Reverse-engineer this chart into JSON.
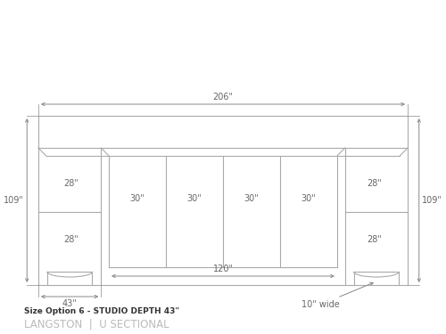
{
  "bg_color": "#ffffff",
  "line_color": "#aaaaaa",
  "dark_line_color": "#888888",
  "text_color": "#666666",
  "title_text": "Size Option 6 - STUDIO DEPTH 43\"",
  "subtitle_text": "LANGSTON  |  U SECTIONAL",
  "dim_206": "206\"",
  "dim_109_left": "109\"",
  "dim_109_right": "109\"",
  "dim_43": "43\"",
  "dim_120": "120\"",
  "dim_30_1": "30\"",
  "dim_30_2": "30\"",
  "dim_30_3": "30\"",
  "dim_30_4": "30\"",
  "dim_28_left_top": "28\"",
  "dim_28_left_bot": "28\"",
  "dim_28_right_top": "28\"",
  "dim_28_right_bot": "28\"",
  "dim_10wide": "10\" wide"
}
